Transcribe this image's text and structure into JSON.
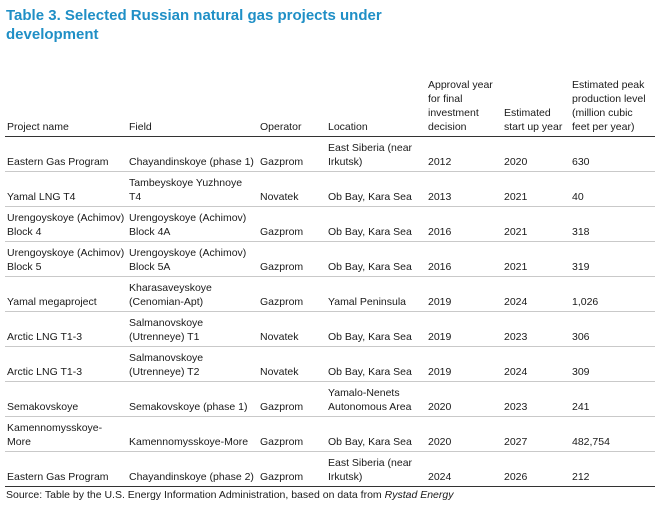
{
  "title": "Table 3. Selected Russian natural gas projects under development",
  "columns": [
    "Project name",
    "Field",
    "Operator",
    "Location",
    "Approval year for final investment decision",
    "Estimated start up year",
    "Estimated peak production level (million cubic feet per year)"
  ],
  "rows": [
    {
      "project": "Eastern Gas Program",
      "field": "Chayandinskoye (phase 1)",
      "operator": "Gazprom",
      "location": "East Siberia (near Irkutsk)",
      "approval": "2012",
      "start": "2020",
      "peak": "630"
    },
    {
      "project": "Yamal LNG T4",
      "field": "Tambeyskoye Yuzhnoye T4",
      "operator": "Novatek",
      "location": "Ob Bay, Kara Sea",
      "approval": "2013",
      "start": "2021",
      "peak": "40"
    },
    {
      "project": "Urengoyskoye (Achimov) Block 4",
      "field": "Urengoyskoye (Achimov) Block 4A",
      "operator": "Gazprom",
      "location": "Ob Bay, Kara Sea",
      "approval": "2016",
      "start": "2021",
      "peak": "318"
    },
    {
      "project": "Urengoyskoye (Achimov) Block 5",
      "field": "Urengoyskoye (Achimov) Block 5A",
      "operator": "Gazprom",
      "location": "Ob Bay, Kara Sea",
      "approval": "2016",
      "start": "2021",
      "peak": "319"
    },
    {
      "project": "Yamal megaproject",
      "field": "Kharasaveyskoye (Cenomian-Apt)",
      "operator": "Gazprom",
      "location": "Yamal Peninsula",
      "approval": "2019",
      "start": "2024",
      "peak": "1,026"
    },
    {
      "project": "Arctic LNG T1-3",
      "field": "Salmanovskoye (Utrenneye) T1",
      "operator": "Novatek",
      "location": "Ob Bay, Kara Sea",
      "approval": "2019",
      "start": "2023",
      "peak": "306"
    },
    {
      "project": "Arctic LNG T1-3",
      "field": "Salmanovskoye (Utrenneye) T2",
      "operator": "Novatek",
      "location": "Ob Bay, Kara Sea",
      "approval": "2019",
      "start": "2024",
      "peak": "309"
    },
    {
      "project": "Semakovskoye",
      "field": "Semakovskoye (phase 1)",
      "operator": "Gazprom",
      "location": "Yamalo-Nenets Autonomous Area",
      "approval": "2020",
      "start": "2023",
      "peak": "241"
    },
    {
      "project": "Kamennomysskoye-More",
      "field": "Kamennomysskoye-More",
      "operator": "Gazprom",
      "location": "Ob Bay, Kara Sea",
      "approval": "2020",
      "start": "2027",
      "peak": "482,754"
    },
    {
      "project": "Eastern Gas Program",
      "field": "Chayandinskoye (phase 2)",
      "operator": "Gazprom",
      "location": "East Siberia (near Irkutsk)",
      "approval": "2024",
      "start": "2026",
      "peak": "212"
    }
  ],
  "source": {
    "text": "Source: Table by the U.S. Energy Information Administration, based on data from ",
    "emphasis": "Rystad Energy"
  }
}
